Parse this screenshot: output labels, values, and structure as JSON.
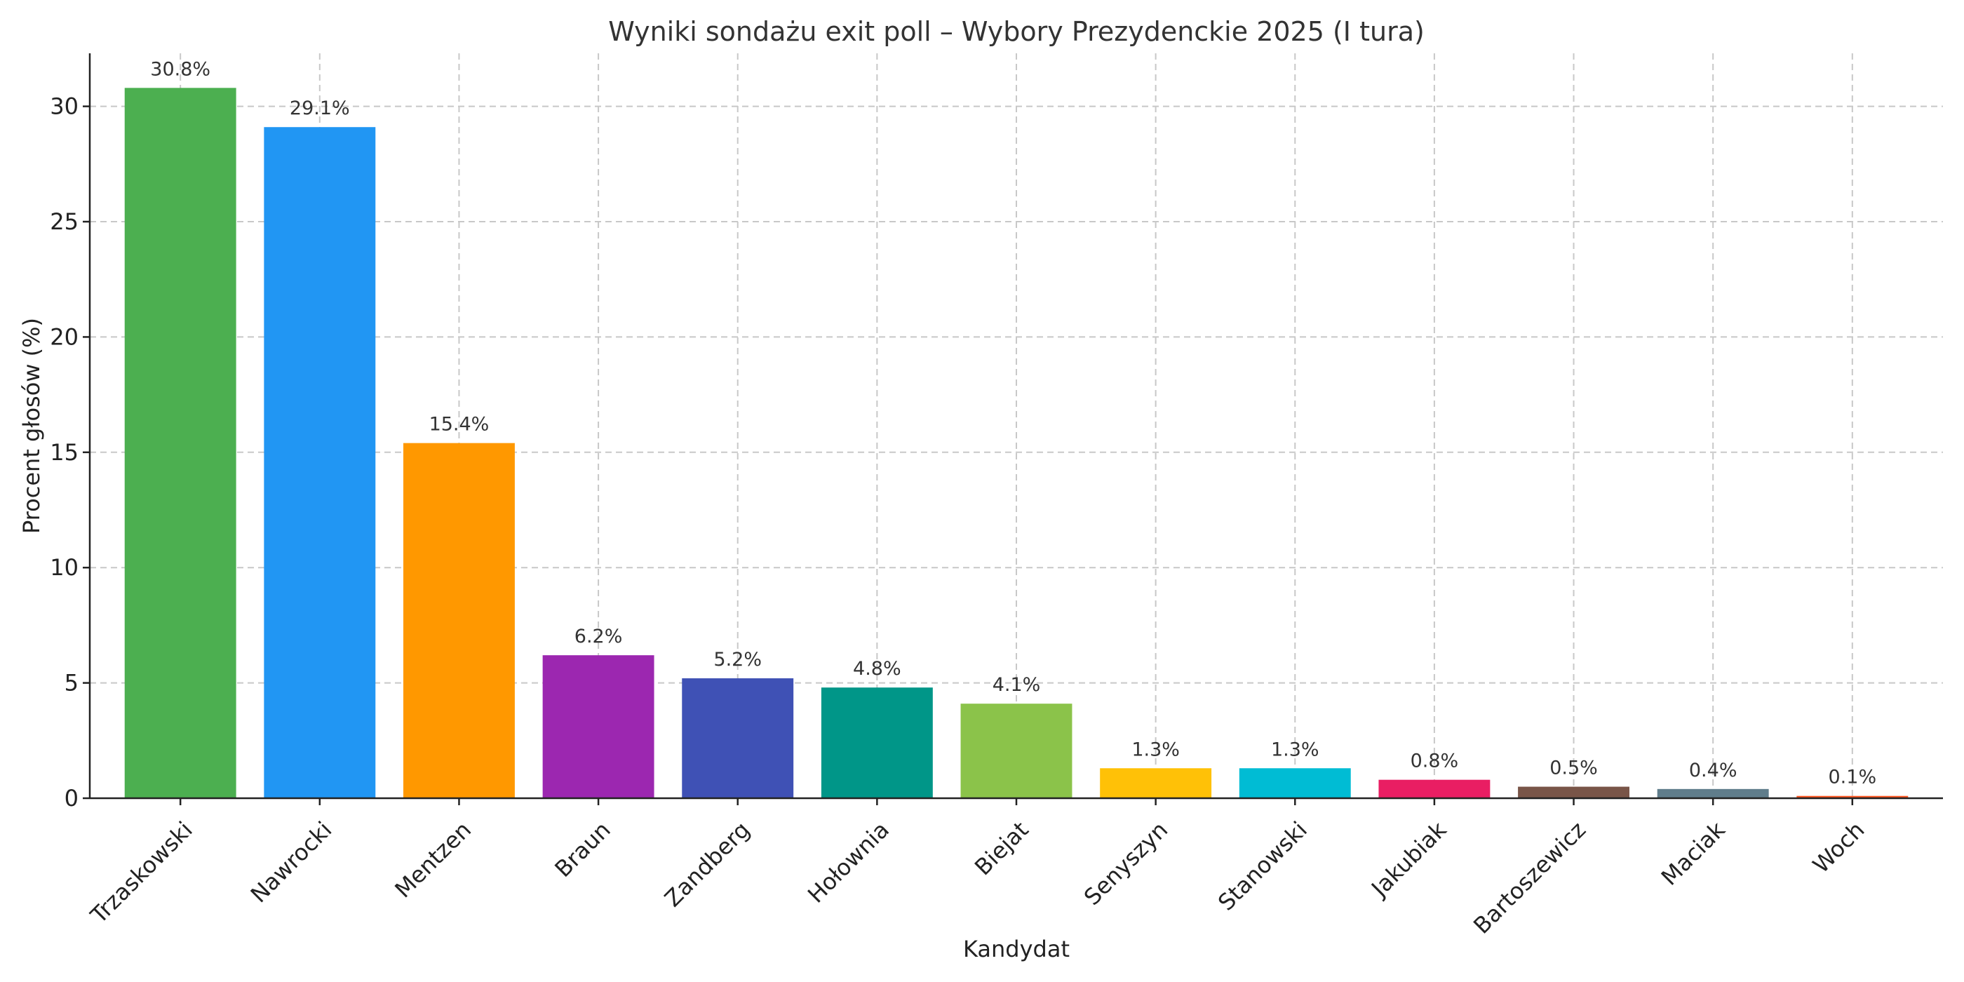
{
  "chart_data": {
    "type": "bar",
    "title": "Wyniki sondażu exit poll – Wybory Prezydenckie 2025 (I tura)",
    "xlabel": "Kandydat",
    "ylabel": "Procent głosów (%)",
    "ylim": [
      0,
      32.3
    ],
    "yticks": [
      0,
      5,
      10,
      15,
      20,
      25,
      30
    ],
    "grid": true,
    "value_suffix": "%",
    "categories": [
      "Trzaskowski",
      "Nawrocki",
      "Mentzen",
      "Braun",
      "Zandberg",
      "Hołownia",
      "Biejat",
      "Senyszyn",
      "Stanowski",
      "Jakubiak",
      "Bartoszewicz",
      "Maciak",
      "Woch"
    ],
    "values": [
      30.8,
      29.1,
      15.4,
      6.2,
      5.2,
      4.8,
      4.1,
      1.3,
      1.3,
      0.8,
      0.5,
      0.4,
      0.1
    ],
    "colors": [
      "#4caf50",
      "#2196f3",
      "#ff9800",
      "#9c27b0",
      "#3f51b5",
      "#009688",
      "#8bc34a",
      "#ffc107",
      "#00bcd4",
      "#e91e63",
      "#795548",
      "#607d8b",
      "#ff5722"
    ]
  }
}
